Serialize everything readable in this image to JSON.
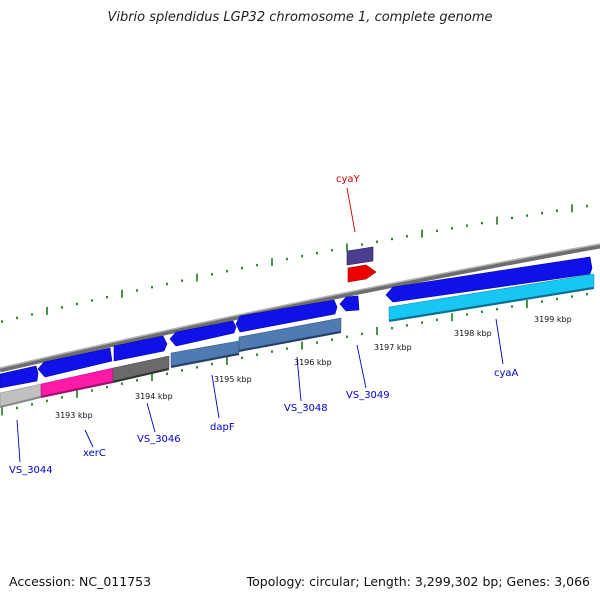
{
  "title": "Vibrio splendidus LGP32 chromosome 1, complete genome",
  "footer": {
    "accession": "Accession: NC_011753",
    "summary": "Topology: circular; Length: 3,299,302 bp; Genes: 3,066"
  },
  "colors": {
    "backbone": "#888888",
    "tick_minor": "#1a7a1a",
    "label_default": "#0000cc",
    "label_highlight": "#cc0000"
  },
  "tick_labels": [
    "3193 kbp",
    "3194 kbp",
    "3195 kbp",
    "3196 kbp",
    "3197 kbp",
    "3198 kbp",
    "3199 kbp"
  ],
  "genes": [
    {
      "id": "VS_3044",
      "label": "VS_3044",
      "color": "#0000cc"
    },
    {
      "id": "xerC",
      "label": "xerC",
      "color": "#0000cc"
    },
    {
      "id": "VS_3046",
      "label": "VS_3046",
      "color": "#0000cc"
    },
    {
      "id": "dapF",
      "label": "dapF",
      "color": "#0000cc"
    },
    {
      "id": "VS_3048",
      "label": "VS_3048",
      "color": "#0000cc"
    },
    {
      "id": "VS_3049",
      "label": "VS_3049",
      "color": "#0000cc"
    },
    {
      "id": "cyaY",
      "label": "cyaY",
      "color": "#cc0000"
    },
    {
      "id": "cyaA",
      "label": "cyaA",
      "color": "#0000cc"
    }
  ]
}
